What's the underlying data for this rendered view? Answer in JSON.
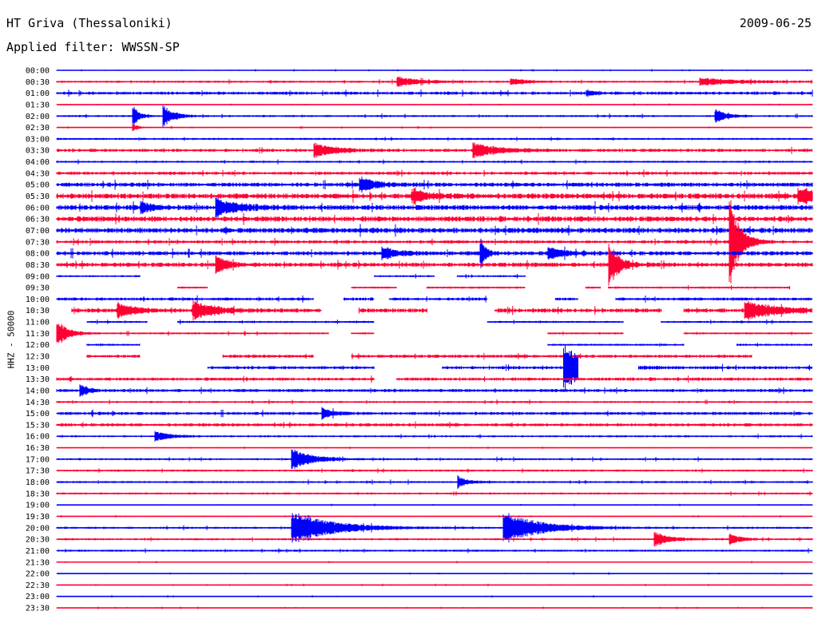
{
  "header": {
    "station": "HT Griva (Thessaloniki)",
    "date": "2009-06-25",
    "filter": "Applied filter: WWSSN-SP"
  },
  "colors": {
    "odd": "#0000ff",
    "even": "#ff0033"
  },
  "chart_data": {
    "type": "line",
    "title": "HT Griva (Thessaloniki)",
    "subtitle": "Applied filter: WWSSN-SP",
    "ylabel": "HHZ - 50000",
    "xlabel": "",
    "grid": false,
    "legend": "none",
    "rows": [
      "00:00",
      "00:30",
      "01:00",
      "01:30",
      "02:00",
      "02:30",
      "03:00",
      "03:30",
      "04:00",
      "04:30",
      "05:00",
      "05:30",
      "06:00",
      "06:30",
      "07:00",
      "07:30",
      "08:00",
      "08:30",
      "09:00",
      "09:30",
      "10:00",
      "10:30",
      "11:00",
      "11:30",
      "12:00",
      "12:30",
      "13:00",
      "13:30",
      "14:00",
      "14:30",
      "15:00",
      "15:30",
      "16:00",
      "16:30",
      "17:00",
      "17:30",
      "18:00",
      "18:30",
      "19:00",
      "19:30",
      "20:00",
      "20:30",
      "21:00",
      "21:30",
      "22:00",
      "22:30",
      "23:00",
      "23:30"
    ],
    "noise_level": [
      1,
      2,
      3,
      1,
      2,
      1,
      2,
      3,
      2,
      3,
      4,
      5,
      5,
      5,
      5,
      3,
      4,
      4,
      2,
      2,
      3,
      4,
      2,
      2,
      2,
      3,
      3,
      3,
      3,
      2,
      3,
      3,
      2,
      1,
      2,
      2,
      2,
      2,
      1,
      1,
      2,
      2,
      2,
      1,
      1,
      1,
      1,
      1
    ],
    "events": [
      {
        "row": "00:30",
        "pos": 0.45,
        "amp": 6,
        "dur": 0.05
      },
      {
        "row": "00:30",
        "pos": 0.6,
        "amp": 5,
        "dur": 0.03
      },
      {
        "row": "00:30",
        "pos": 0.85,
        "amp": 5,
        "dur": 0.08
      },
      {
        "row": "01:00",
        "pos": 0.7,
        "amp": 4,
        "dur": 0.02
      },
      {
        "row": "02:00",
        "pos": 0.1,
        "amp": 18,
        "dur": 0.01
      },
      {
        "row": "02:00",
        "pos": 0.14,
        "amp": 16,
        "dur": 0.02
      },
      {
        "row": "02:00",
        "pos": 0.87,
        "amp": 10,
        "dur": 0.02
      },
      {
        "row": "02:30",
        "pos": 0.1,
        "amp": 6,
        "dur": 0.01
      },
      {
        "row": "03:30",
        "pos": 0.34,
        "amp": 10,
        "dur": 0.04
      },
      {
        "row": "03:30",
        "pos": 0.55,
        "amp": 10,
        "dur": 0.05
      },
      {
        "row": "05:00",
        "pos": 0.4,
        "amp": 10,
        "dur": 0.03
      },
      {
        "row": "05:30",
        "pos": 0.47,
        "amp": 8,
        "dur": 0.03
      },
      {
        "row": "05:30",
        "pos": 0.98,
        "amp": 12,
        "dur": 0.04
      },
      {
        "row": "06:00",
        "pos": 0.21,
        "amp": 12,
        "dur": 0.04
      },
      {
        "row": "06:00",
        "pos": 0.11,
        "amp": 8,
        "dur": 0.02
      },
      {
        "row": "07:30",
        "pos": 0.89,
        "amp": 60,
        "dur": 0.02
      },
      {
        "row": "08:00",
        "pos": 0.43,
        "amp": 8,
        "dur": 0.03
      },
      {
        "row": "08:00",
        "pos": 0.56,
        "amp": 22,
        "dur": 0.01
      },
      {
        "row": "08:00",
        "pos": 0.65,
        "amp": 8,
        "dur": 0.03
      },
      {
        "row": "08:30",
        "pos": 0.21,
        "amp": 14,
        "dur": 0.02
      },
      {
        "row": "08:30",
        "pos": 0.73,
        "amp": 30,
        "dur": 0.02
      },
      {
        "row": "10:30",
        "pos": 0.08,
        "amp": 10,
        "dur": 0.03
      },
      {
        "row": "10:30",
        "pos": 0.18,
        "amp": 12,
        "dur": 0.04
      },
      {
        "row": "10:30",
        "pos": 0.91,
        "amp": 12,
        "dur": 0.06
      },
      {
        "row": "11:30",
        "pos": 0.0,
        "amp": 18,
        "dur": 0.02
      },
      {
        "row": "13:00",
        "pos": 0.67,
        "amp": 30,
        "dur": 0.05
      },
      {
        "row": "14:00",
        "pos": 0.03,
        "amp": 8,
        "dur": 0.02
      },
      {
        "row": "15:00",
        "pos": 0.35,
        "amp": 8,
        "dur": 0.02
      },
      {
        "row": "16:00",
        "pos": 0.13,
        "amp": 6,
        "dur": 0.03
      },
      {
        "row": "17:00",
        "pos": 0.31,
        "amp": 14,
        "dur": 0.04
      },
      {
        "row": "18:00",
        "pos": 0.53,
        "amp": 8,
        "dur": 0.02
      },
      {
        "row": "20:00",
        "pos": 0.31,
        "amp": 22,
        "dur": 0.08
      },
      {
        "row": "20:00",
        "pos": 0.59,
        "amp": 22,
        "dur": 0.07
      },
      {
        "row": "20:30",
        "pos": 0.79,
        "amp": 10,
        "dur": 0.03
      },
      {
        "row": "20:30",
        "pos": 0.89,
        "amp": 8,
        "dur": 0.02
      }
    ],
    "gaps": [
      {
        "row": "09:00",
        "segments": [
          [
            0,
            0.11
          ],
          [
            0.42,
            0.5
          ],
          [
            0.53,
            0.62
          ]
        ]
      },
      {
        "row": "09:30",
        "segments": [
          [
            0.16,
            0.2
          ],
          [
            0.39,
            0.45
          ],
          [
            0.49,
            0.62
          ],
          [
            0.7,
            0.72
          ],
          [
            0.73,
            0.97
          ]
        ]
      },
      {
        "row": "10:00",
        "segments": [
          [
            0,
            0.34
          ],
          [
            0.38,
            0.42
          ],
          [
            0.44,
            0.57
          ],
          [
            0.66,
            0.69
          ],
          [
            0.74,
            1
          ]
        ]
      },
      {
        "row": "10:30",
        "segments": [
          [
            0.02,
            0.35
          ],
          [
            0.4,
            0.49
          ],
          [
            0.58,
            0.8
          ],
          [
            0.83,
            1
          ]
        ]
      },
      {
        "row": "11:00",
        "segments": [
          [
            0.04,
            0.12
          ],
          [
            0.16,
            0.42
          ],
          [
            0.57,
            0.75
          ],
          [
            0.8,
            1
          ]
        ]
      },
      {
        "row": "11:30",
        "segments": [
          [
            0,
            0.36
          ],
          [
            0.39,
            0.42
          ],
          [
            0.65,
            0.75
          ],
          [
            0.83,
            1
          ]
        ]
      },
      {
        "row": "12:00",
        "segments": [
          [
            0.04,
            0.11
          ],
          [
            0.65,
            0.83
          ],
          [
            0.9,
            1
          ]
        ]
      },
      {
        "row": "12:30",
        "segments": [
          [
            0.04,
            0.11
          ],
          [
            0.22,
            0.34
          ],
          [
            0.39,
            0.92
          ]
        ]
      },
      {
        "row": "13:00",
        "segments": [
          [
            0.2,
            0.42
          ],
          [
            0.51,
            0.69
          ],
          [
            0.77,
            1
          ]
        ]
      },
      {
        "row": "13:30",
        "segments": [
          [
            0,
            0.42
          ],
          [
            0.45,
            1
          ]
        ]
      }
    ]
  }
}
